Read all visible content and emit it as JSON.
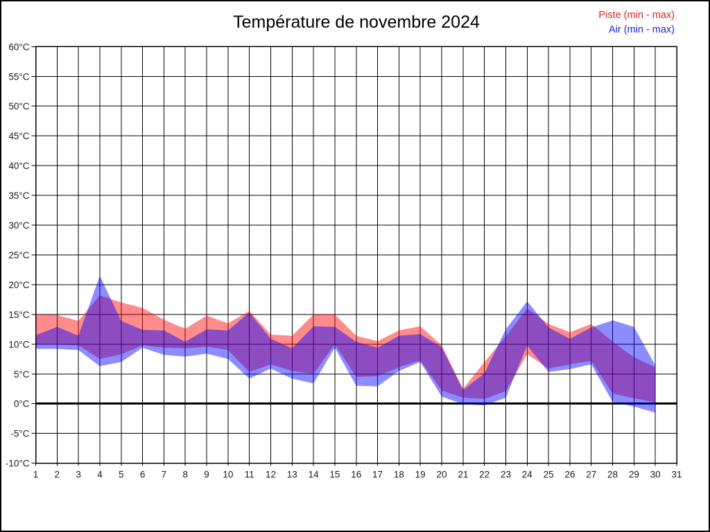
{
  "header": {
    "title": "Température de novembre 2024"
  },
  "legend": {
    "piste_label": "Piste (min - max)",
    "air_label": "Air (min - max)",
    "piste_color": "#dd2222",
    "air_color": "#2222dd"
  },
  "chart_data": {
    "type": "area",
    "title": "Température de novembre 2024",
    "xlabel": "",
    "ylabel": "",
    "ylim": [
      -10,
      60
    ],
    "y_tick_step": 5,
    "y_tick_suffix": "°C",
    "y_ticks": [
      60,
      55,
      50,
      45,
      40,
      35,
      30,
      25,
      20,
      15,
      10,
      5,
      0,
      -5,
      -10
    ],
    "x_ticks": [
      1,
      2,
      3,
      4,
      5,
      6,
      7,
      8,
      9,
      10,
      11,
      12,
      13,
      14,
      15,
      16,
      17,
      18,
      19,
      20,
      21,
      22,
      23,
      24,
      25,
      26,
      27,
      28,
      29,
      30,
      31
    ],
    "grid": true,
    "zero_line": true,
    "legend_position": "top-right",
    "colors": {
      "grid": "#000000",
      "frame": "#000000",
      "zero_line": "#000000"
    },
    "series": [
      {
        "name": "Piste (min - max)",
        "color": "#ff0000",
        "fill_opacity": 0.45,
        "x": [
          1,
          2,
          3,
          4,
          5,
          6,
          7,
          8,
          9,
          10,
          11,
          12,
          13,
          14,
          15,
          16,
          17,
          18,
          19,
          20,
          21,
          22,
          23,
          24,
          25,
          26,
          27,
          28,
          29,
          30
        ],
        "min": [
          10.0,
          9.9,
          9.8,
          7.5,
          8.3,
          9.8,
          9.4,
          9.3,
          9.6,
          9.0,
          5.3,
          6.6,
          5.5,
          5.0,
          10.0,
          4.5,
          4.6,
          6.1,
          7.3,
          2.2,
          1.0,
          0.8,
          2.1,
          8.3,
          5.9,
          6.6,
          7.2,
          1.7,
          0.9,
          0.2
        ],
        "max": [
          15.0,
          14.9,
          13.9,
          18.2,
          17.0,
          16.1,
          14.1,
          12.6,
          14.8,
          13.5,
          15.6,
          11.6,
          11.4,
          15.0,
          15.0,
          11.4,
          10.5,
          12.3,
          13.0,
          9.8,
          2.5,
          7.0,
          11.3,
          16.0,
          13.4,
          12.0,
          13.4,
          10.4,
          7.8,
          6.1
        ]
      },
      {
        "name": "Air (min - max)",
        "color": "#0000ff",
        "fill_opacity": 0.45,
        "x": [
          1,
          2,
          3,
          4,
          5,
          6,
          7,
          8,
          9,
          10,
          11,
          12,
          13,
          14,
          15,
          16,
          17,
          18,
          19,
          20,
          21,
          22,
          23,
          24,
          25,
          26,
          27,
          28,
          29,
          30
        ],
        "min": [
          9.2,
          9.2,
          9.0,
          6.3,
          7.0,
          9.4,
          8.2,
          7.9,
          8.4,
          7.5,
          4.2,
          5.9,
          4.2,
          3.4,
          9.4,
          3.0,
          2.9,
          5.5,
          7.0,
          1.2,
          -0.1,
          -0.3,
          1.0,
          9.8,
          5.3,
          5.8,
          6.6,
          0.3,
          -0.5,
          -1.5
        ],
        "max": [
          11.5,
          12.9,
          11.4,
          21.5,
          13.9,
          12.4,
          12.3,
          10.4,
          12.5,
          12.3,
          15.3,
          10.9,
          9.3,
          13.0,
          12.9,
          10.4,
          9.4,
          11.4,
          11.7,
          9.5,
          2.3,
          5.1,
          12.5,
          17.2,
          12.8,
          10.9,
          12.8,
          14.0,
          12.9,
          6.4
        ]
      }
    ]
  }
}
